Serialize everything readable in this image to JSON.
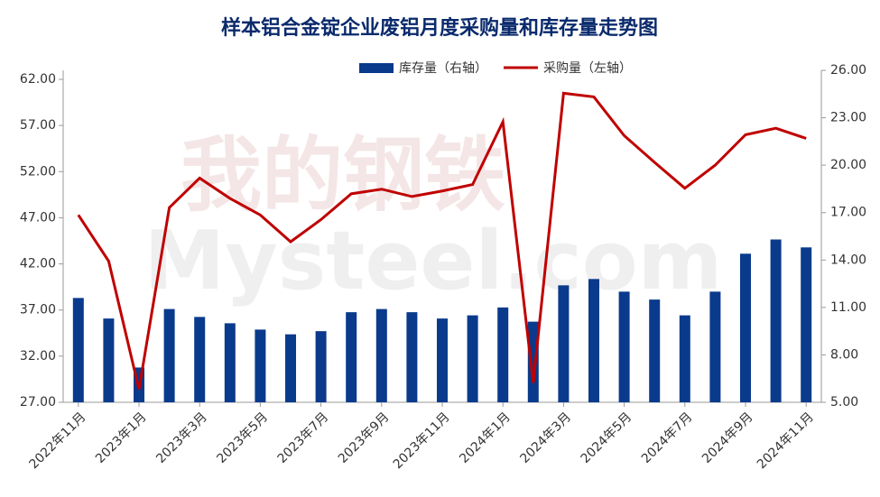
{
  "chart_data": {
    "type": "bar-line",
    "title": "样本铝合金锭企业废铝月度采购量和库存量走势图",
    "watermark": "我的钢铁",
    "watermark_en": "Mysteel.com",
    "categories": [
      "2022年11月",
      null,
      "2023年1月",
      null,
      "2023年3月",
      null,
      "2023年5月",
      null,
      "2023年7月",
      null,
      "2023年9月",
      null,
      "2023年11月",
      null,
      "2024年1月",
      null,
      "2024年3月",
      null,
      "2024年5月",
      null,
      "2024年7月",
      null,
      "2024年9月",
      null,
      "2024年11月"
    ],
    "series": [
      {
        "name": "库存量（右轴）",
        "type": "bar",
        "axis": "y2",
        "color": "#0a3a8c",
        "values": [
          11.6,
          10.3,
          7.2,
          10.9,
          10.4,
          10.0,
          9.6,
          9.3,
          9.5,
          10.7,
          10.9,
          10.7,
          10.3,
          10.5,
          11.0,
          10.1,
          12.4,
          12.8,
          12.0,
          11.5,
          10.5,
          12.0,
          14.4,
          15.3,
          14.8
        ]
      },
      {
        "name": "采购量（左轴）",
        "type": "line",
        "axis": "y",
        "color": "#c00000",
        "values": [
          47.3,
          42.3,
          28.4,
          48.1,
          51.3,
          49.1,
          47.3,
          44.4,
          46.8,
          49.6,
          50.1,
          49.3,
          49.9,
          50.6,
          57.4,
          29.1,
          60.5,
          60.1,
          55.9,
          53.0,
          50.2,
          52.7,
          56.0,
          56.7,
          55.6
        ]
      }
    ],
    "ylim": [
      27,
      62
    ],
    "yticks": [
      {
        "value": 27,
        "label": "27.00"
      },
      {
        "value": 32,
        "label": "32.00"
      },
      {
        "value": 37,
        "label": "37.00"
      },
      {
        "value": 42,
        "label": "42.00"
      },
      {
        "value": 47,
        "label": "47.00"
      },
      {
        "value": 52,
        "label": "52.00"
      },
      {
        "value": 57,
        "label": "57.00"
      },
      {
        "value": 62,
        "label": "62.00"
      }
    ],
    "y2lim": [
      5,
      26
    ],
    "y2ticks": [
      {
        "value": 5,
        "label": "5.00"
      },
      {
        "value": 8,
        "label": "8.00"
      },
      {
        "value": 11,
        "label": "11.00"
      },
      {
        "value": 14,
        "label": "14.00"
      },
      {
        "value": 17,
        "label": "17.00"
      },
      {
        "value": 20,
        "label": "20.00"
      },
      {
        "value": 23,
        "label": "23.00"
      },
      {
        "value": 26,
        "label": "26.00"
      }
    ],
    "legend": "top"
  }
}
